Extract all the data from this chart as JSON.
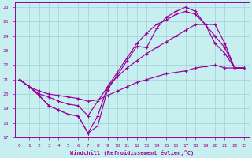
{
  "xlabel": "Windchill (Refroidissement éolien,°C)",
  "xlim": [
    -0.5,
    23.5
  ],
  "ylim": [
    17,
    26.3
  ],
  "xticks": [
    0,
    1,
    2,
    3,
    4,
    5,
    6,
    7,
    8,
    9,
    10,
    11,
    12,
    13,
    14,
    15,
    16,
    17,
    18,
    19,
    20,
    21,
    22,
    23
  ],
  "yticks": [
    17,
    18,
    19,
    20,
    21,
    22,
    23,
    24,
    25,
    26
  ],
  "background_color": "#c8eff0",
  "grid_color": "#a0ced8",
  "line_color": "#990099",
  "line1_y": [
    21.0,
    20.5,
    19.9,
    19.2,
    18.9,
    18.6,
    18.5,
    17.3,
    17.8,
    20.3,
    21.3,
    22.3,
    23.3,
    23.2,
    24.5,
    25.3,
    25.7,
    26.0,
    25.7,
    24.8,
    23.5,
    22.8,
    21.8,
    21.8
  ],
  "line2_y": [
    21.0,
    20.5,
    19.9,
    19.2,
    18.9,
    18.6,
    18.5,
    17.3,
    18.5,
    20.5,
    21.5,
    22.5,
    23.5,
    24.2,
    24.8,
    25.1,
    25.5,
    25.7,
    25.5,
    24.8,
    24.0,
    23.2,
    21.8,
    21.8
  ],
  "line3_y": [
    21.0,
    20.5,
    20.0,
    19.8,
    19.5,
    19.3,
    19.2,
    18.5,
    19.5,
    20.5,
    21.2,
    21.8,
    22.3,
    22.8,
    23.2,
    23.6,
    24.0,
    24.4,
    24.8,
    24.8,
    24.8,
    23.5,
    21.8,
    21.8
  ],
  "line4_y": [
    21.0,
    20.5,
    20.2,
    20.0,
    19.9,
    19.8,
    19.7,
    19.5,
    19.6,
    19.9,
    20.2,
    20.5,
    20.8,
    21.0,
    21.2,
    21.4,
    21.5,
    21.6,
    21.8,
    21.9,
    22.0,
    21.8,
    21.8,
    21.8
  ]
}
